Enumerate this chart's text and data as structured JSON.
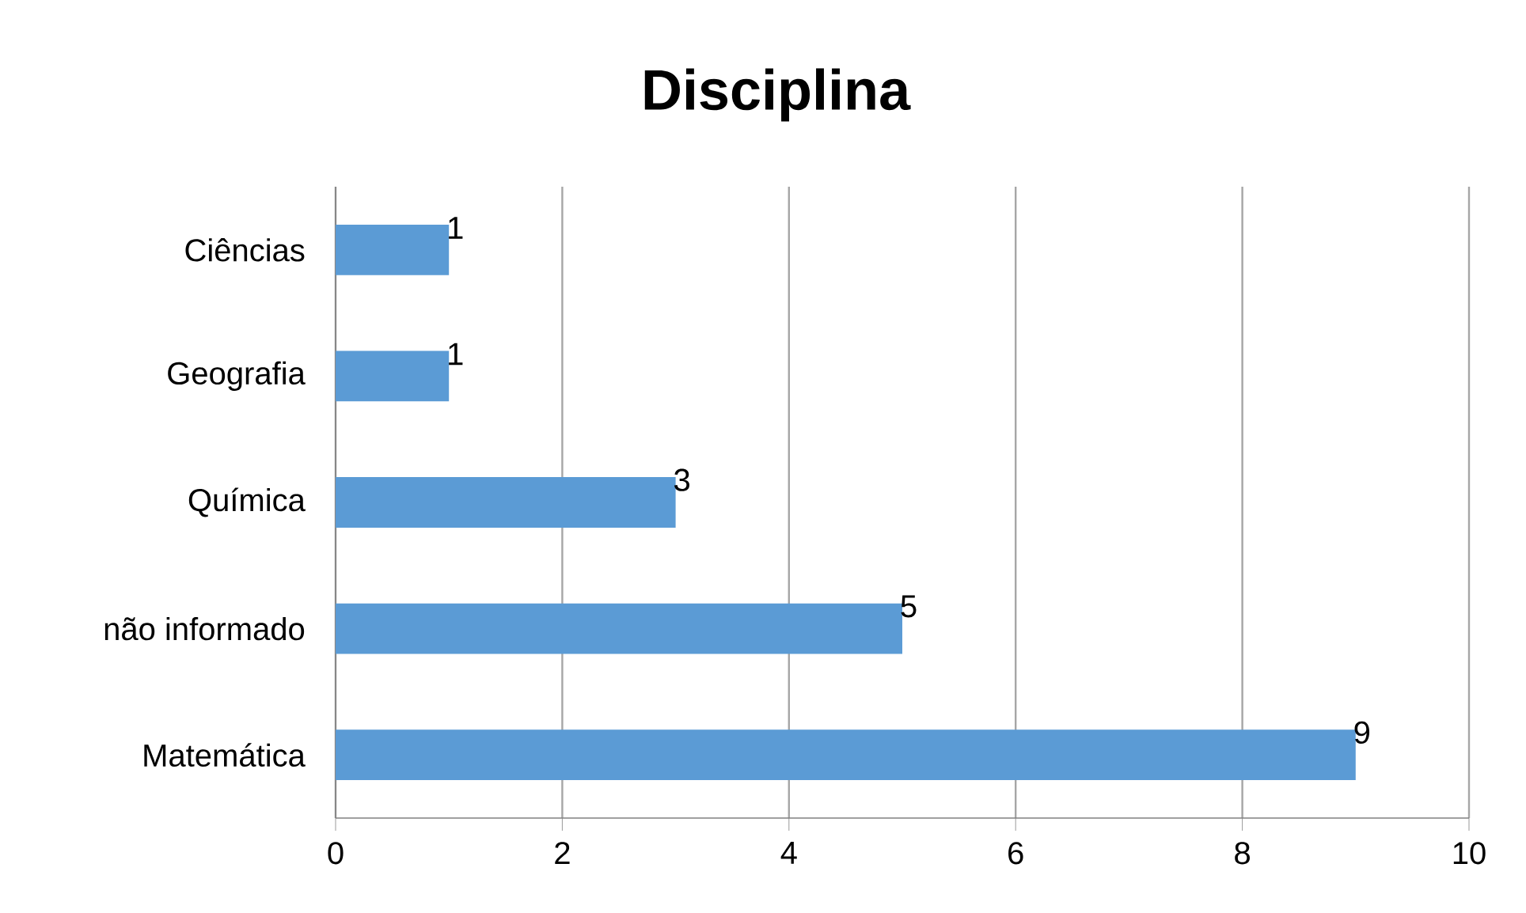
{
  "chart_data": {
    "type": "bar",
    "orientation": "horizontal",
    "title": "Disciplina",
    "categories": [
      "Ciências",
      "Geografia",
      "Química",
      "não informado",
      "Matemática"
    ],
    "values": [
      1,
      1,
      3,
      5,
      9
    ],
    "color": "#5b9bd5",
    "xlim": [
      0,
      10
    ],
    "xticks": [
      0,
      2,
      4,
      6,
      8,
      10
    ],
    "grid": "x",
    "data_labels": true
  }
}
